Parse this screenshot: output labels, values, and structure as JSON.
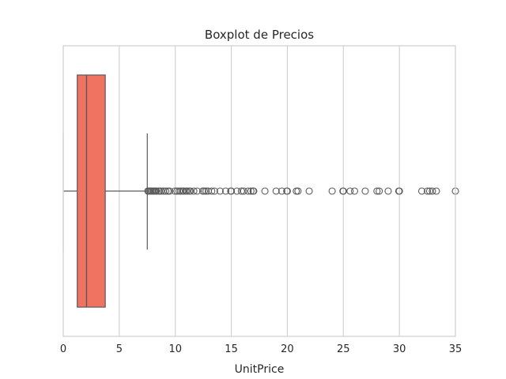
{
  "chart_data": {
    "type": "boxplot",
    "title": "Boxplot de Precios",
    "xlabel": "UnitPrice",
    "ylabel": "",
    "xlim": [
      0,
      35
    ],
    "x_ticks": [
      0,
      5,
      10,
      15,
      20,
      25,
      30,
      35
    ],
    "x_tick_labels": [
      "0",
      "5",
      "10",
      "15",
      "20",
      "25",
      "30",
      "35"
    ],
    "grid": true,
    "grid_axis": "x",
    "orientation": "horizontal",
    "colors": {
      "box_fill": "#f07260",
      "box_edge": "#5a5a5a",
      "whisker": "#5a5a5a",
      "median": "#5a5a5a",
      "outlier_edge": "#5a5a5a",
      "grid": "#cfcfcf",
      "spine": "#cfcfcf",
      "text": "#262626",
      "background": "#ffffff"
    },
    "box": {
      "min": 0.0,
      "q1": 1.25,
      "median": 2.08,
      "q3": 3.75,
      "whisker_high": 7.5
    },
    "outliers": [
      7.55,
      7.65,
      7.75,
      7.85,
      7.95,
      8.05,
      8.15,
      8.25,
      8.3,
      8.5,
      8.6,
      8.75,
      8.95,
      9.15,
      9.35,
      9.5,
      9.95,
      10.15,
      10.35,
      10.5,
      10.65,
      10.75,
      10.95,
      11.05,
      11.25,
      11.35,
      11.65,
      11.95,
      12.45,
      12.6,
      12.75,
      12.95,
      13.25,
      13.5,
      14.0,
      14.5,
      14.95,
      15.0,
      15.5,
      15.9,
      16.1,
      16.5,
      16.75,
      16.95,
      17.0,
      18.0,
      19.0,
      19.5,
      19.95,
      20.0,
      20.8,
      20.95,
      21.95,
      24.0,
      24.96,
      25.0,
      25.6,
      26.0,
      26.95,
      28.0,
      28.2,
      29.0,
      29.95,
      30.0,
      32.0,
      32.5,
      32.7,
      32.95,
      33.3,
      35.0
    ]
  }
}
